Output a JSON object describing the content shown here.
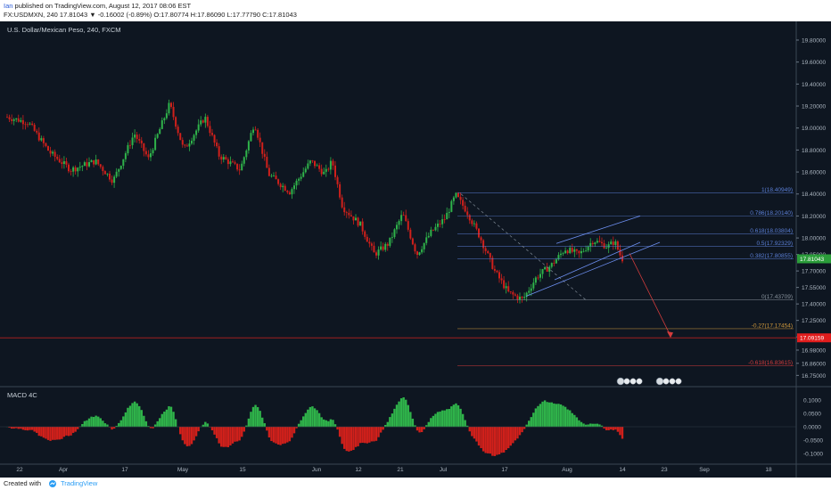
{
  "header": {
    "author": "Ian",
    "published_text": "published on TradingView.com, August 12, 2017 08:06 EST",
    "ticker_line": "FX:USDMXN, 240  17.81043 ▼ -0.16002 (-0.89%) O:17.80774 H:17.86090 L:17.77790 C:17.81043"
  },
  "footer": {
    "created_with": "Created with",
    "brand": "TradingView"
  },
  "colors": {
    "background": "#0e1621",
    "bull": "#2fb34a",
    "bear": "#d0201b",
    "fib_blue": "#5b7fd6",
    "fib_orange": "#d29a3c",
    "fib_red": "#d33c3c",
    "price_badge": "#2b9d3a",
    "target_badge": "#e11d1d"
  },
  "chart_data": [
    {
      "type": "candlestick",
      "title": "U.S. Dollar/Mexican Peso, 240, FXCM",
      "ylim": [
        16.68,
        19.97
      ],
      "x_ticks": [
        "22",
        "Apr",
        "17",
        "May",
        "15",
        "Jun",
        "12",
        "21",
        "Jul",
        "17",
        "Aug",
        "14",
        "23",
        "Sep",
        "18"
      ],
      "y_ticks": [
        "19.80000",
        "19.60000",
        "19.40000",
        "19.20000",
        "19.00000",
        "18.80000",
        "18.60000",
        "18.40000",
        "18.20000",
        "18.00000",
        "17.85000",
        "17.70000",
        "17.55000",
        "17.40000",
        "17.25000",
        "17.10000",
        "16.98000",
        "16.86000",
        "16.75000"
      ],
      "waypoints": [
        {
          "bar": 0,
          "price": 19.1
        },
        {
          "bar": 6,
          "price": 19.05
        },
        {
          "bar": 12,
          "price": 18.78
        },
        {
          "bar": 18,
          "price": 18.62
        },
        {
          "bar": 25,
          "price": 18.7
        },
        {
          "bar": 30,
          "price": 18.52
        },
        {
          "bar": 36,
          "price": 18.95
        },
        {
          "bar": 40,
          "price": 18.72
        },
        {
          "bar": 46,
          "price": 19.22
        },
        {
          "bar": 50,
          "price": 18.8
        },
        {
          "bar": 56,
          "price": 19.1
        },
        {
          "bar": 60,
          "price": 18.75
        },
        {
          "bar": 66,
          "price": 18.62
        },
        {
          "bar": 70,
          "price": 19.05
        },
        {
          "bar": 74,
          "price": 18.58
        },
        {
          "bar": 80,
          "price": 18.42
        },
        {
          "bar": 86,
          "price": 18.7
        },
        {
          "bar": 90,
          "price": 18.58
        },
        {
          "bar": 92,
          "price": 18.7
        },
        {
          "bar": 95,
          "price": 18.28
        },
        {
          "bar": 100,
          "price": 18.12
        },
        {
          "bar": 104,
          "price": 17.85
        },
        {
          "bar": 108,
          "price": 17.95
        },
        {
          "bar": 112,
          "price": 18.22
        },
        {
          "bar": 116,
          "price": 17.85
        },
        {
          "bar": 120,
          "price": 18.05
        },
        {
          "bar": 124,
          "price": 18.18
        },
        {
          "bar": 127,
          "price": 18.39
        },
        {
          "bar": 130,
          "price": 18.25
        },
        {
          "bar": 134,
          "price": 18.0
        },
        {
          "bar": 138,
          "price": 17.7
        },
        {
          "bar": 142,
          "price": 17.5
        },
        {
          "bar": 146,
          "price": 17.44
        },
        {
          "bar": 150,
          "price": 17.65
        },
        {
          "bar": 154,
          "price": 17.75
        },
        {
          "bar": 158,
          "price": 17.9
        },
        {
          "bar": 162,
          "price": 17.85
        },
        {
          "bar": 166,
          "price": 17.98
        },
        {
          "bar": 170,
          "price": 17.92
        },
        {
          "bar": 172,
          "price": 17.97
        },
        {
          "bar": 174,
          "price": 17.81
        }
      ],
      "fib_levels": [
        {
          "label": "1(18.40949)",
          "price": 18.40949,
          "color": "blue"
        },
        {
          "label": "0.786(18.20140)",
          "price": 18.2014,
          "color": "blue"
        },
        {
          "label": "0.618(18.03804)",
          "price": 18.03804,
          "color": "blue"
        },
        {
          "label": "0.5(17.92329)",
          "price": 17.92329,
          "color": "blue"
        },
        {
          "label": "0.382(17.80855)",
          "price": 17.80855,
          "color": "blue"
        },
        {
          "label": "0(17.43709)",
          "price": 17.43709,
          "color": "grey"
        },
        {
          "label": "-0.27(17.17454)",
          "price": 17.17454,
          "color": "orange"
        },
        {
          "label": "-0.618(16.83615)",
          "price": 16.83615,
          "color": "red"
        }
      ],
      "current_price": {
        "label": "17.81043",
        "value": 17.81043
      },
      "target_price": {
        "label": "17.09159",
        "value": 17.09159
      }
    },
    {
      "type": "histogram",
      "title": "MACD 4C",
      "ylim": [
        -0.15,
        0.14
      ],
      "y_ticks": [
        "0.1000",
        "0.0500",
        "0.0000",
        "-0.0500",
        "-0.1000"
      ]
    }
  ]
}
